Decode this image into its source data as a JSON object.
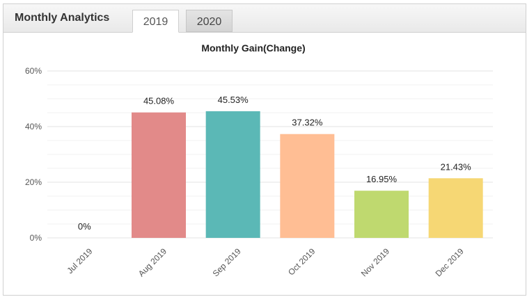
{
  "panel": {
    "title": "Monthly Analytics",
    "tabs": [
      {
        "label": "2019",
        "active": true
      },
      {
        "label": "2020",
        "active": false
      }
    ]
  },
  "chart_data": {
    "type": "bar",
    "title": "Monthly Gain(Change)",
    "xlabel": "",
    "ylabel": "",
    "ylim": [
      0,
      60
    ],
    "yticks": [
      0,
      20,
      40,
      60
    ],
    "ytick_labels": [
      "0%",
      "20%",
      "40%",
      "60%"
    ],
    "grid": true,
    "categories": [
      "Jul 2019",
      "Aug 2019",
      "Sep 2019",
      "Oct 2019",
      "Nov 2019",
      "Dec 2019"
    ],
    "values": [
      0,
      45.08,
      45.53,
      37.32,
      16.95,
      21.43
    ],
    "data_labels": [
      "0%",
      "45.08%",
      "45.53%",
      "37.32%",
      "16.95%",
      "21.43%"
    ],
    "colors": [
      "#e08a8a",
      "#e28a89",
      "#5bb8b6",
      "#ffbe94",
      "#bfd96f",
      "#f6d774"
    ]
  }
}
